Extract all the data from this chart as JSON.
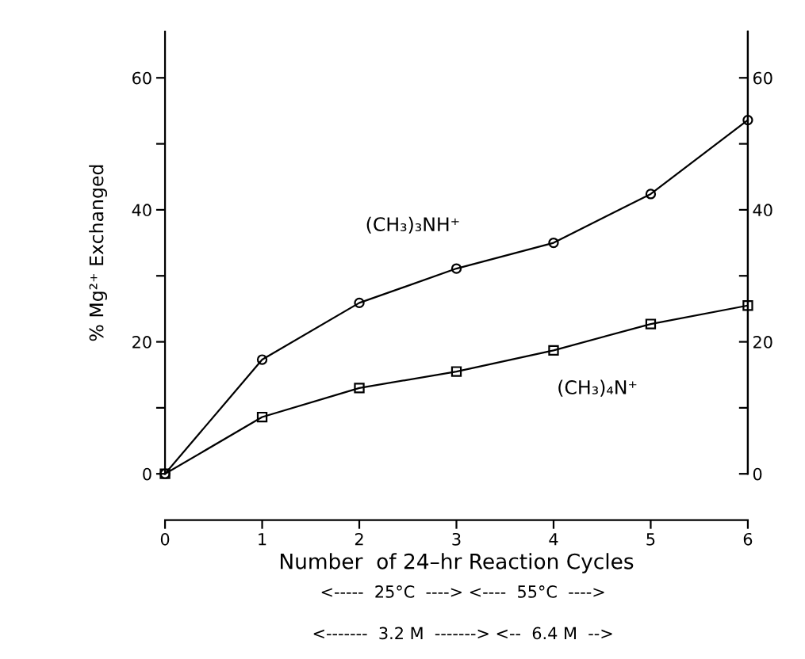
{
  "chart_data": {
    "type": "line",
    "ylabel": "% Mg²⁺ Exchanged",
    "xlabel": "Number  of 24–hr Reaction Cycles",
    "x": [
      0,
      1,
      2,
      3,
      4,
      5,
      6
    ],
    "series": [
      {
        "name": "(CH₃)₃NH⁺",
        "color": "#000000",
        "marker": "circle",
        "values": [
          0,
          17.3,
          25.9,
          31.1,
          35.0,
          42.4,
          53.6
        ]
      },
      {
        "name": "(CH₃)₄N⁺",
        "color": "#000000",
        "marker": "square",
        "values": [
          0,
          8.6,
          13.0,
          15.5,
          18.7,
          22.7,
          25.5
        ]
      }
    ],
    "xlim": [
      0,
      6
    ],
    "xticks": [
      0,
      1,
      2,
      3,
      4,
      5,
      6
    ],
    "ylim": [
      0,
      67
    ],
    "yticks": [
      0,
      {
        "value": 10,
        "label": null
      },
      20,
      {
        "value": 30,
        "label": null
      },
      40,
      {
        "value": 50,
        "label": null
      },
      60
    ],
    "y2lim": [
      0,
      67
    ],
    "y2ticks": [
      0,
      {
        "value": 10,
        "label": null
      },
      20,
      {
        "value": 30,
        "label": null
      },
      40,
      {
        "value": 50,
        "label": null
      },
      60
    ],
    "grid": false,
    "legend": false,
    "line_style": "solid",
    "annotations": [
      "<-----  25°C  ----> <----  55°C  ---->",
      "<-------  3.2 M  -------> <--  6.4 M  -->"
    ]
  }
}
